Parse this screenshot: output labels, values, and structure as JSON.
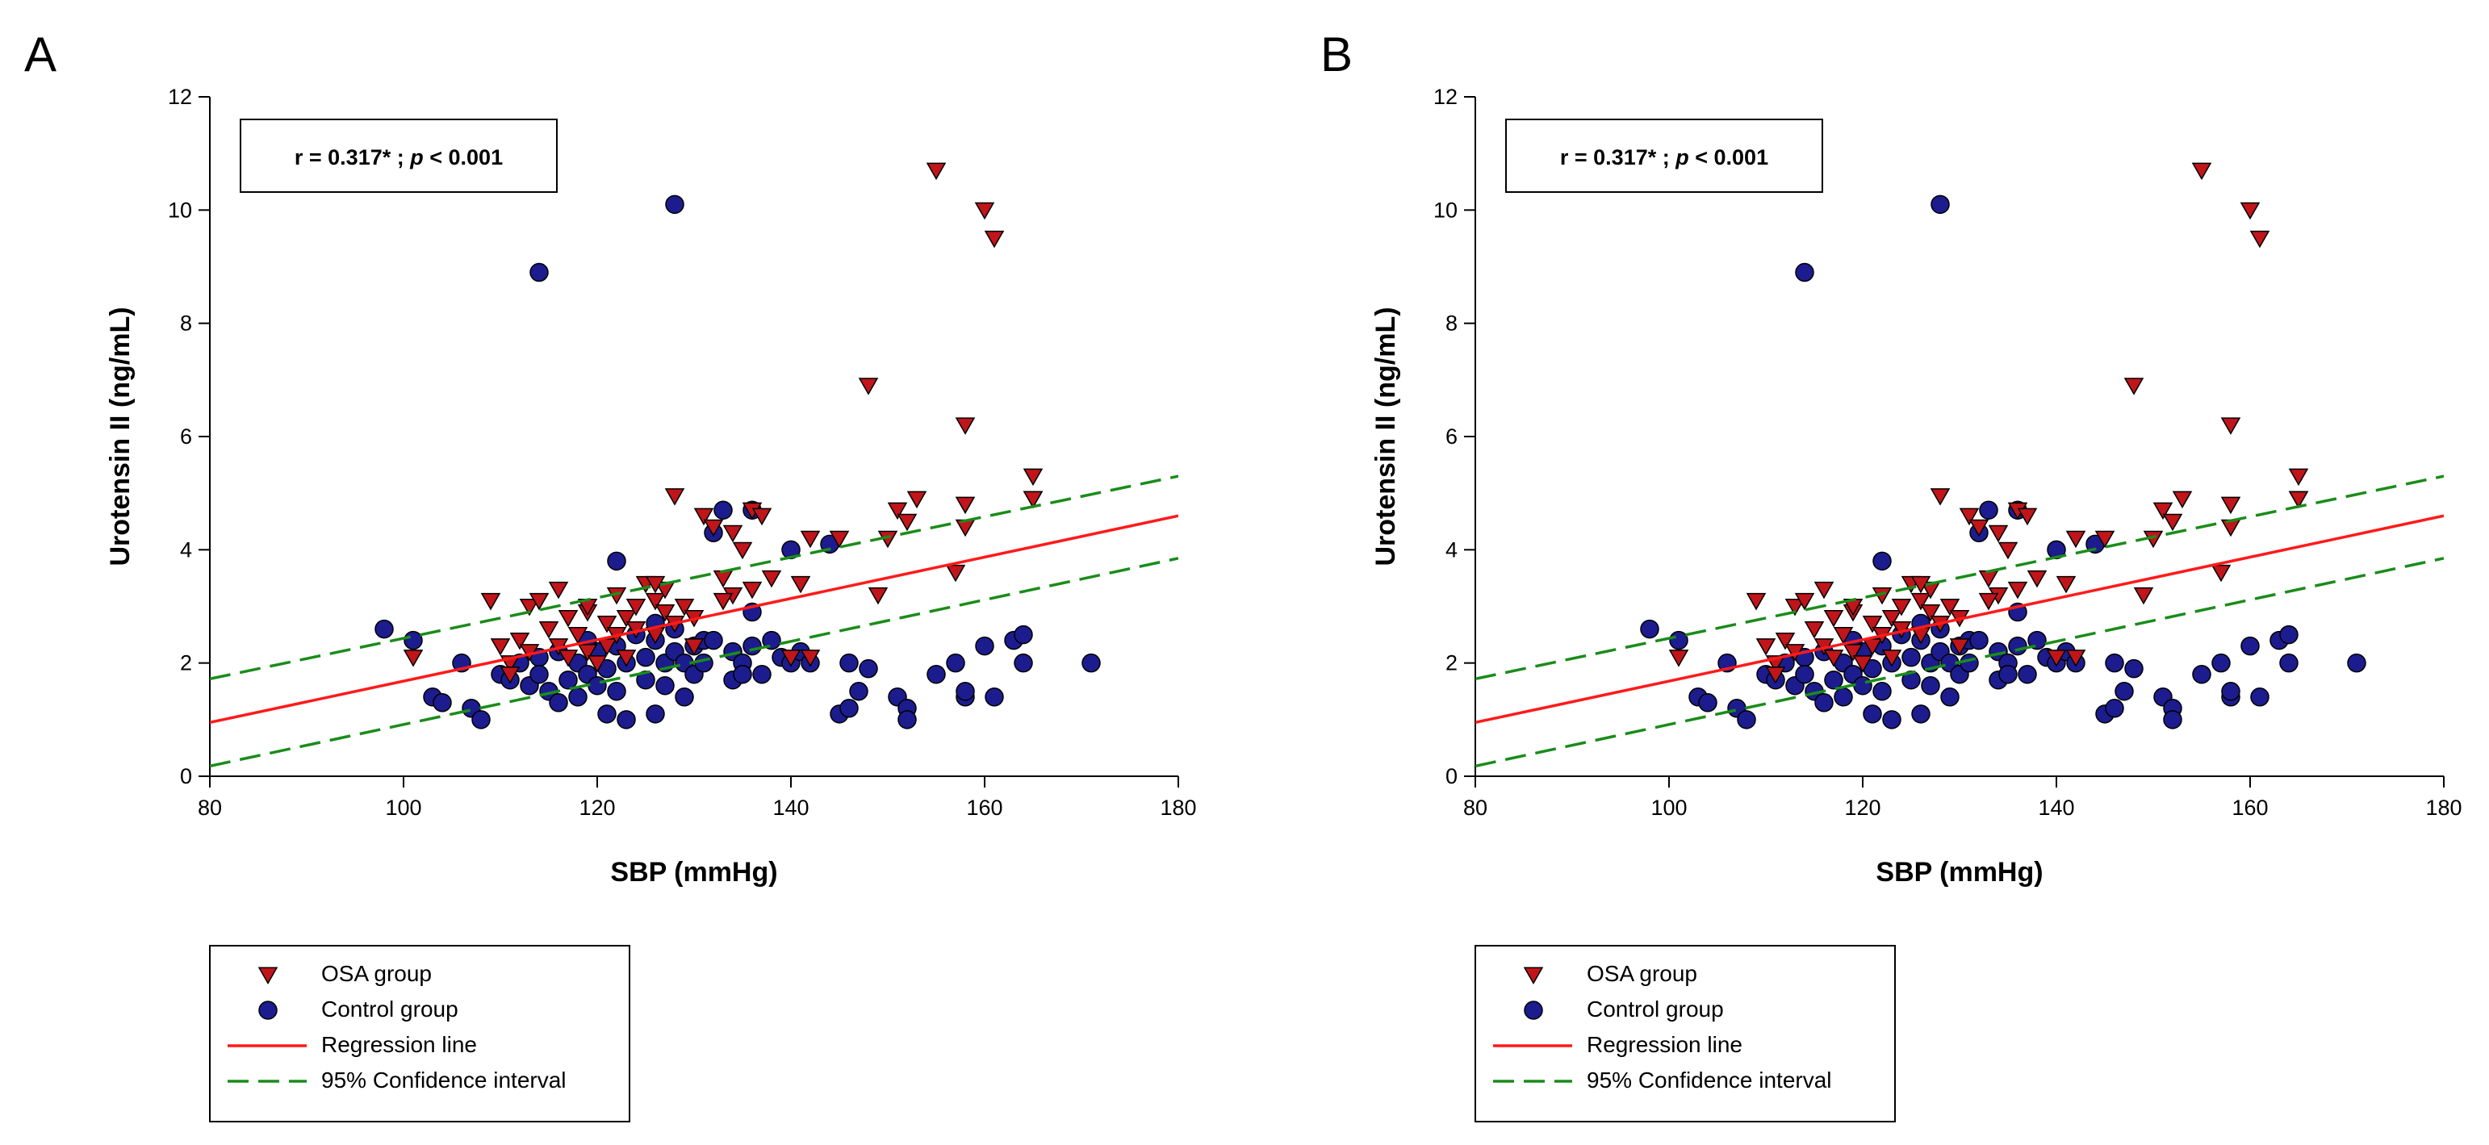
{
  "colors": {
    "osa_fill": "#c0151a",
    "control_fill": "#1c1c8e",
    "regression": "#ff1a1a",
    "ci": "#1a8c1a",
    "axis": "#000000"
  },
  "chart_data": [
    {
      "panel_label": "A",
      "type": "scatter",
      "xlabel": "SBP (mmHg)",
      "ylabel": "Urotensin II (ng/mL)",
      "xlim": [
        80,
        180
      ],
      "ylim": [
        0,
        12
      ],
      "xticks": [
        80,
        100,
        120,
        140,
        160,
        180
      ],
      "yticks": [
        0,
        2,
        4,
        6,
        8,
        10,
        12
      ],
      "annotation": {
        "prefix": "r = 0.317* ; ",
        "p_symbol": "p",
        "suffix": " < 0.001"
      },
      "legend": {
        "osa_label": "OSA group",
        "control_label": "Control group",
        "regression_label": "Regression line",
        "ci_label": "95% Confidence interval"
      },
      "series": [
        {
          "name": "OSA group",
          "marker": "triangle-down",
          "x": [
            101,
            109,
            110,
            111,
            111,
            112,
            113,
            113,
            114,
            115,
            116,
            117,
            117,
            118,
            119,
            119,
            120,
            121,
            121,
            122,
            122,
            123,
            123,
            124,
            124,
            125,
            126,
            126,
            127,
            127,
            128,
            129,
            130,
            131,
            132,
            133,
            134,
            134,
            135,
            136,
            136,
            137,
            138,
            141,
            142,
            145,
            148,
            149,
            150,
            151,
            152,
            153,
            155,
            157,
            158,
            158,
            158,
            160,
            161,
            165,
            165,
            165,
            126,
            128,
            130,
            133,
            140,
            142,
            116,
            119
          ],
          "y": [
            2.1,
            3.1,
            2.3,
            2.0,
            1.8,
            2.4,
            3.0,
            2.2,
            3.1,
            2.6,
            2.3,
            2.8,
            2.1,
            2.5,
            2.9,
            2.2,
            2.0,
            2.7,
            2.3,
            3.2,
            2.5,
            2.8,
            2.1,
            3.0,
            2.6,
            3.4,
            3.1,
            2.5,
            3.3,
            2.9,
            4.95,
            3.0,
            2.8,
            4.6,
            4.4,
            3.5,
            4.3,
            3.2,
            4.0,
            3.3,
            4.7,
            4.6,
            3.5,
            3.4,
            4.2,
            4.2,
            6.9,
            3.2,
            4.2,
            4.7,
            4.5,
            4.9,
            10.7,
            3.6,
            6.2,
            4.8,
            4.4,
            10.0,
            9.5,
            5.3,
            4.9,
            4.9,
            3.4,
            2.7,
            2.3,
            3.1,
            2.1,
            2.1,
            3.3,
            3.0
          ]
        },
        {
          "name": "Control group",
          "marker": "circle",
          "x": [
            98,
            101,
            103,
            104,
            106,
            107,
            108,
            110,
            111,
            112,
            113,
            114,
            114,
            115,
            116,
            116,
            117,
            118,
            118,
            119,
            119,
            120,
            120,
            121,
            121,
            122,
            122,
            123,
            123,
            124,
            125,
            125,
            126,
            126,
            127,
            127,
            128,
            128,
            129,
            129,
            130,
            130,
            131,
            131,
            132,
            133,
            134,
            134,
            135,
            135,
            136,
            136,
            137,
            138,
            139,
            140,
            141,
            142,
            144,
            145,
            146,
            146,
            147,
            148,
            151,
            152,
            152,
            155,
            157,
            158,
            158,
            160,
            161,
            163,
            164,
            164,
            171,
            128,
            122,
            114,
            126,
            132,
            136,
            140
          ],
          "y": [
            2.6,
            2.4,
            1.4,
            1.3,
            2.0,
            1.2,
            1.0,
            1.8,
            1.7,
            2.0,
            1.6,
            2.1,
            1.8,
            1.5,
            1.3,
            2.2,
            1.7,
            2.0,
            1.4,
            1.8,
            2.4,
            1.6,
            2.2,
            1.1,
            1.9,
            2.3,
            1.5,
            1.0,
            2.0,
            2.5,
            2.1,
            1.7,
            2.4,
            1.1,
            2.0,
            1.6,
            2.6,
            2.2,
            1.4,
            2.0,
            2.3,
            1.8,
            2.4,
            2.0,
            4.3,
            4.7,
            1.7,
            2.2,
            2.0,
            1.8,
            2.3,
            4.7,
            1.8,
            2.4,
            2.1,
            2.0,
            2.2,
            2.0,
            4.1,
            1.1,
            2.0,
            1.2,
            1.5,
            1.9,
            1.4,
            1.2,
            1.0,
            1.8,
            2.0,
            1.4,
            1.5,
            2.3,
            1.4,
            2.4,
            2.5,
            2.0,
            2.0,
            10.1,
            3.8,
            8.9,
            2.7,
            2.4,
            2.9,
            4.0
          ]
        }
      ],
      "regression": {
        "x": [
          80,
          180
        ],
        "y": [
          0.95,
          4.6
        ]
      },
      "ci_upper": {
        "x": [
          80,
          180
        ],
        "y": [
          1.72,
          5.3
        ]
      },
      "ci_lower": {
        "x": [
          80,
          180
        ],
        "y": [
          0.18,
          3.85
        ]
      }
    },
    {
      "panel_label": "B",
      "type": "scatter",
      "xlabel": "SBP (mmHg)",
      "ylabel": "Urotensin II (ng/mL)",
      "xlim": [
        80,
        180
      ],
      "ylim": [
        0,
        12
      ],
      "xticks": [
        80,
        100,
        120,
        140,
        160,
        180
      ],
      "yticks": [
        0,
        2,
        4,
        6,
        8,
        10,
        12
      ],
      "annotation": {
        "prefix": "r = 0.317* ; ",
        "p_symbol": "p",
        "suffix": " < 0.001"
      },
      "legend": {
        "osa_label": "OSA group",
        "control_label": "Control group",
        "regression_label": "Regression line",
        "ci_label": "95% Confidence interval"
      },
      "series": [
        {
          "name": "OSA group",
          "marker": "triangle-down",
          "x": [
            101,
            109,
            110,
            111,
            111,
            112,
            113,
            113,
            114,
            115,
            116,
            117,
            117,
            118,
            119,
            119,
            120,
            121,
            121,
            122,
            122,
            123,
            123,
            124,
            124,
            125,
            126,
            126,
            127,
            127,
            128,
            129,
            130,
            131,
            132,
            133,
            134,
            134,
            135,
            136,
            136,
            137,
            138,
            141,
            142,
            145,
            148,
            149,
            150,
            151,
            152,
            153,
            155,
            157,
            158,
            158,
            158,
            160,
            161,
            165,
            165,
            165,
            126,
            128,
            130,
            133,
            140,
            142,
            116,
            119
          ],
          "y": [
            2.1,
            3.1,
            2.3,
            2.0,
            1.8,
            2.4,
            3.0,
            2.2,
            3.1,
            2.6,
            2.3,
            2.8,
            2.1,
            2.5,
            2.9,
            2.2,
            2.0,
            2.7,
            2.3,
            3.2,
            2.5,
            2.8,
            2.1,
            3.0,
            2.6,
            3.4,
            3.1,
            2.5,
            3.3,
            2.9,
            4.95,
            3.0,
            2.8,
            4.6,
            4.4,
            3.5,
            4.3,
            3.2,
            4.0,
            3.3,
            4.7,
            4.6,
            3.5,
            3.4,
            4.2,
            4.2,
            6.9,
            3.2,
            4.2,
            4.7,
            4.5,
            4.9,
            10.7,
            3.6,
            6.2,
            4.8,
            4.4,
            10.0,
            9.5,
            5.3,
            4.9,
            4.9,
            3.4,
            2.7,
            2.3,
            3.1,
            2.1,
            2.1,
            3.3,
            3.0
          ]
        },
        {
          "name": "Control group",
          "marker": "circle",
          "x": [
            98,
            101,
            103,
            104,
            106,
            107,
            108,
            110,
            111,
            112,
            113,
            114,
            114,
            115,
            116,
            116,
            117,
            118,
            118,
            119,
            119,
            120,
            120,
            121,
            121,
            122,
            122,
            123,
            123,
            124,
            125,
            125,
            126,
            126,
            127,
            127,
            128,
            128,
            129,
            129,
            130,
            130,
            131,
            131,
            132,
            133,
            134,
            134,
            135,
            135,
            136,
            136,
            137,
            138,
            139,
            140,
            141,
            142,
            144,
            145,
            146,
            146,
            147,
            148,
            151,
            152,
            152,
            155,
            157,
            158,
            158,
            160,
            161,
            163,
            164,
            164,
            171,
            128,
            122,
            114,
            126,
            132,
            136,
            140
          ],
          "y": [
            2.6,
            2.4,
            1.4,
            1.3,
            2.0,
            1.2,
            1.0,
            1.8,
            1.7,
            2.0,
            1.6,
            2.1,
            1.8,
            1.5,
            1.3,
            2.2,
            1.7,
            2.0,
            1.4,
            1.8,
            2.4,
            1.6,
            2.2,
            1.1,
            1.9,
            2.3,
            1.5,
            1.0,
            2.0,
            2.5,
            2.1,
            1.7,
            2.4,
            1.1,
            2.0,
            1.6,
            2.6,
            2.2,
            1.4,
            2.0,
            2.3,
            1.8,
            2.4,
            2.0,
            4.3,
            4.7,
            1.7,
            2.2,
            2.0,
            1.8,
            2.3,
            4.7,
            1.8,
            2.4,
            2.1,
            2.0,
            2.2,
            2.0,
            4.1,
            1.1,
            2.0,
            1.2,
            1.5,
            1.9,
            1.4,
            1.2,
            1.0,
            1.8,
            2.0,
            1.4,
            1.5,
            2.3,
            1.4,
            2.4,
            2.5,
            2.0,
            2.0,
            10.1,
            3.8,
            8.9,
            2.7,
            2.4,
            2.9,
            4.0
          ]
        }
      ],
      "regression": {
        "x": [
          80,
          180
        ],
        "y": [
          0.95,
          4.6
        ]
      },
      "ci_upper": {
        "x": [
          80,
          180
        ],
        "y": [
          1.72,
          5.3
        ]
      },
      "ci_lower": {
        "x": [
          80,
          180
        ],
        "y": [
          0.18,
          3.85
        ]
      }
    }
  ]
}
